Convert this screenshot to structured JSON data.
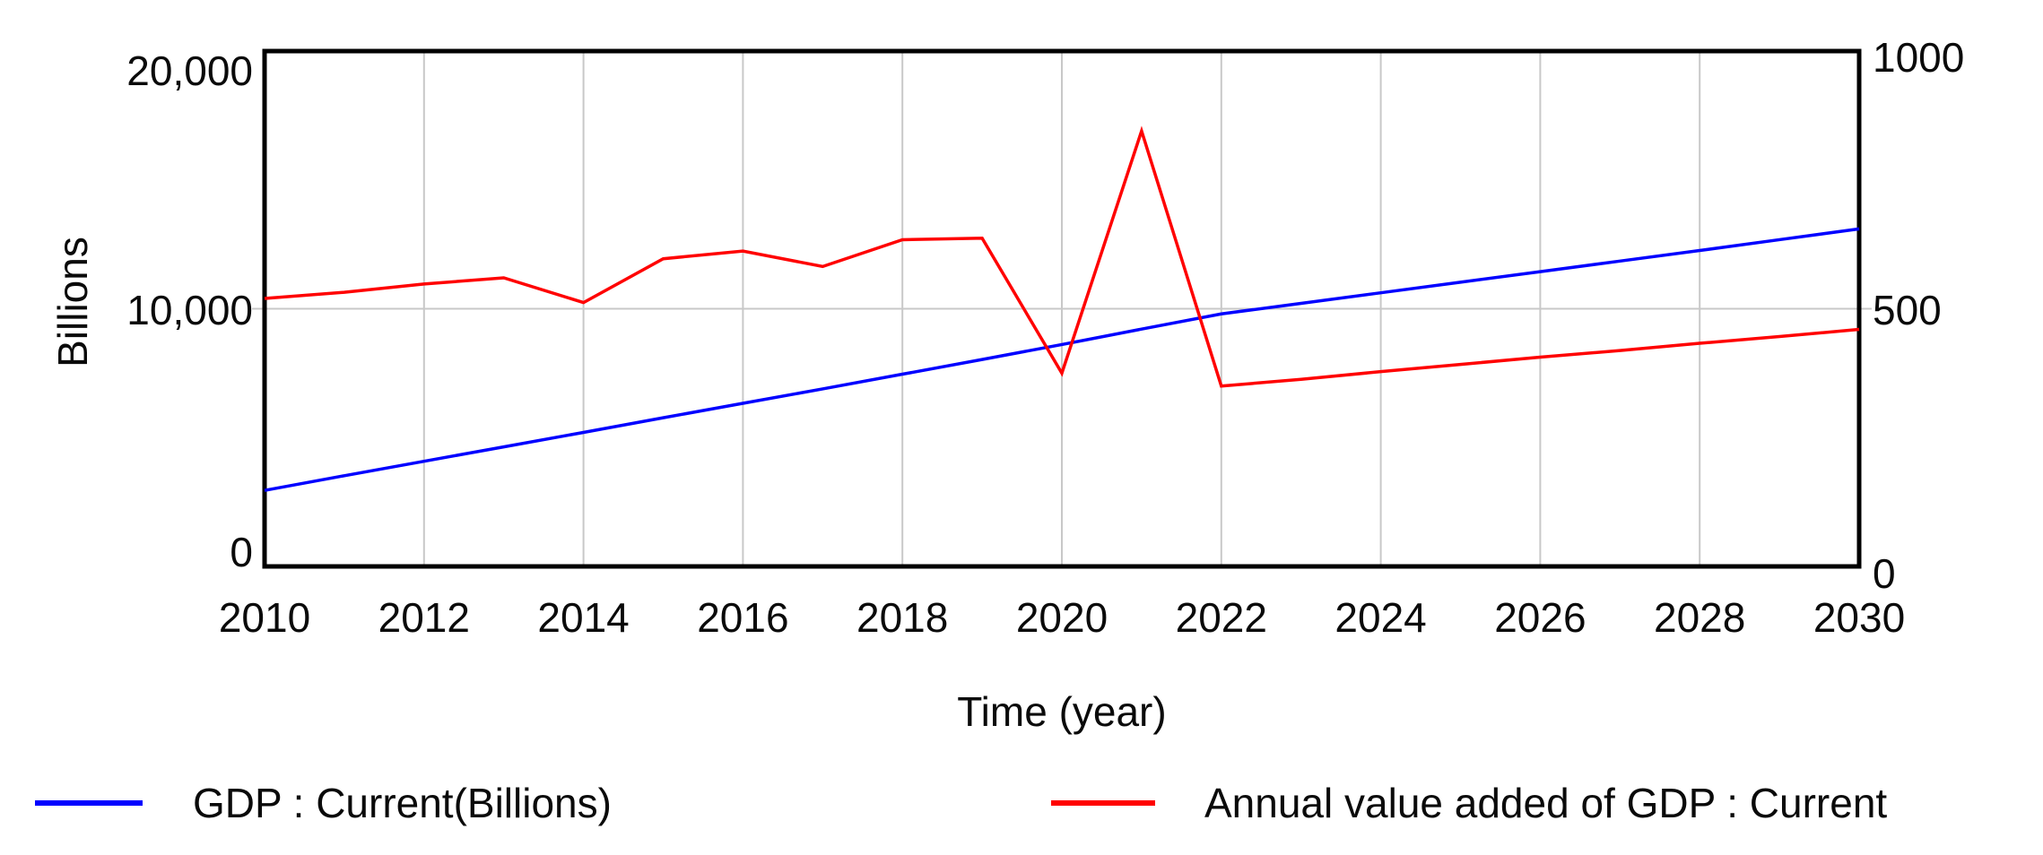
{
  "chart": {
    "y_left": {
      "label": "Billions",
      "ticks": [
        "20,000",
        "10,000",
        "0"
      ]
    },
    "y_right": {
      "ticks": [
        "1000",
        "500",
        "0"
      ]
    },
    "x": {
      "label": "Time (year)",
      "ticks": [
        "2010",
        "2012",
        "2014",
        "2016",
        "2018",
        "2020",
        "2022",
        "2024",
        "2026",
        "2028",
        "2030"
      ]
    },
    "legend": [
      {
        "label": "GDP : Current(Billions)",
        "color": "#0000ff"
      },
      {
        "label": "Annual value added of GDP : Current",
        "color": "#ff0000"
      }
    ]
  },
  "colors": {
    "gdp_line": "#0000ff",
    "value_added_line": "#ff0000",
    "gridline": "#c8c8c8",
    "plot_border": "#000000",
    "text": "#0a0a0a",
    "background": "#ffffff"
  },
  "chart_data": {
    "type": "line",
    "x": [
      2010,
      2011,
      2012,
      2013,
      2014,
      2015,
      2016,
      2017,
      2018,
      2019,
      2020,
      2021,
      2022,
      2023,
      2024,
      2025,
      2026,
      2027,
      2028,
      2029,
      2030
    ],
    "series": [
      {
        "name": "GDP : Current(Billions)",
        "axis": "left",
        "color": "#0000ff",
        "values": [
          2950,
          3520,
          4080,
          4640,
          5200,
          5770,
          6330,
          6890,
          7460,
          8030,
          8610,
          9210,
          9800,
          10210,
          10620,
          11030,
          11440,
          11850,
          12260,
          12680,
          13100
        ]
      },
      {
        "name": "Annual value added of GDP : Current",
        "axis": "right",
        "color": "#ff0000",
        "values": [
          520,
          532,
          548,
          560,
          512,
          597,
          612,
          582,
          634,
          637,
          375,
          845,
          350,
          363,
          378,
          392,
          406,
          419,
          433,
          446,
          460
        ]
      }
    ],
    "title": "",
    "xlabel": "Time (year)",
    "ylabel_left": "Billions",
    "ylim_left": [
      0,
      20000
    ],
    "ylim_right": [
      0,
      1000
    ],
    "xlim": [
      2010,
      2030
    ],
    "x_ticks": [
      2010,
      2012,
      2014,
      2016,
      2018,
      2020,
      2022,
      2024,
      2026,
      2028,
      2030
    ],
    "grid": true,
    "legend_position": "bottom"
  }
}
